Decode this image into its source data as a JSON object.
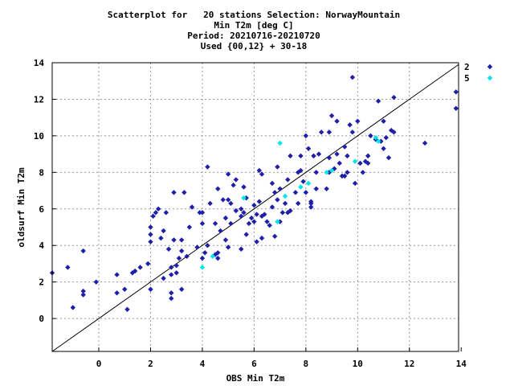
{
  "chart_data": {
    "type": "scatter",
    "title_lines": [
      "Scatterplot for   20 stations Selection: NorwayMountain",
      "Min T2m [deg C]",
      "Period: 20210716-20210720",
      "Used {00,12} + 30-18"
    ],
    "xlabel": "OBS Min T2m",
    "ylabel": "oldsurf Min T2m",
    "xlim": [
      -1.8,
      13.9
    ],
    "ylim": [
      -1.8,
      14
    ],
    "xticks": [
      0,
      2,
      4,
      6,
      8,
      10,
      12,
      14
    ],
    "yticks": [
      0,
      2,
      4,
      6,
      8,
      10,
      12,
      14
    ],
    "grid": true,
    "diagonal": true,
    "legend_position": "right",
    "series": [
      {
        "name": "2",
        "color": "#1f1fa8",
        "marker": "diamond",
        "points": [
          [
            -1.8,
            2.5
          ],
          [
            -1.2,
            2.8
          ],
          [
            -1.0,
            0.6
          ],
          [
            -0.6,
            3.7
          ],
          [
            -0.6,
            1.5
          ],
          [
            -0.6,
            1.3
          ],
          [
            -0.1,
            2.0
          ],
          [
            0.7,
            2.4
          ],
          [
            0.7,
            1.4
          ],
          [
            1.0,
            1.6
          ],
          [
            1.1,
            0.5
          ],
          [
            1.3,
            2.5
          ],
          [
            1.4,
            2.6
          ],
          [
            1.6,
            2.8
          ],
          [
            1.9,
            3.0
          ],
          [
            2.0,
            1.6
          ],
          [
            2.0,
            4.2
          ],
          [
            2.0,
            4.6
          ],
          [
            2.0,
            5.0
          ],
          [
            2.1,
            5.6
          ],
          [
            2.2,
            5.8
          ],
          [
            2.3,
            6.0
          ],
          [
            2.4,
            4.4
          ],
          [
            2.5,
            2.2
          ],
          [
            2.5,
            4.8
          ],
          [
            2.6,
            5.8
          ],
          [
            2.7,
            3.8
          ],
          [
            2.8,
            2.4
          ],
          [
            2.8,
            2.8
          ],
          [
            2.8,
            1.1
          ],
          [
            2.8,
            1.4
          ],
          [
            2.9,
            4.3
          ],
          [
            2.9,
            6.9
          ],
          [
            3.0,
            2.9
          ],
          [
            3.0,
            2.5
          ],
          [
            3.1,
            3.3
          ],
          [
            3.2,
            3.7
          ],
          [
            3.2,
            4.3
          ],
          [
            3.2,
            1.6
          ],
          [
            3.3,
            6.9
          ],
          [
            3.4,
            3.4
          ],
          [
            3.5,
            5.0
          ],
          [
            3.6,
            6.1
          ],
          [
            3.8,
            3.9
          ],
          [
            3.9,
            5.8
          ],
          [
            4.0,
            5.2
          ],
          [
            4.0,
            3.3
          ],
          [
            4.0,
            5.8
          ],
          [
            4.1,
            3.6
          ],
          [
            4.2,
            4.0
          ],
          [
            4.2,
            8.3
          ],
          [
            4.3,
            6.3
          ],
          [
            4.5,
            3.5
          ],
          [
            4.5,
            5.2
          ],
          [
            4.6,
            3.6
          ],
          [
            4.6,
            7.1
          ],
          [
            4.6,
            3.3
          ],
          [
            4.7,
            4.8
          ],
          [
            4.8,
            6.5
          ],
          [
            4.9,
            4.3
          ],
          [
            4.9,
            5.5
          ],
          [
            5.0,
            6.5
          ],
          [
            5.0,
            7.9
          ],
          [
            5.0,
            3.9
          ],
          [
            5.1,
            5.2
          ],
          [
            5.1,
            6.3
          ],
          [
            5.2,
            7.3
          ],
          [
            5.3,
            7.6
          ],
          [
            5.3,
            5.9
          ],
          [
            5.5,
            5.6
          ],
          [
            5.5,
            3.8
          ],
          [
            5.5,
            6.0
          ],
          [
            5.6,
            7.2
          ],
          [
            5.6,
            5.8
          ],
          [
            5.7,
            6.6
          ],
          [
            5.7,
            4.6
          ],
          [
            5.8,
            5.2
          ],
          [
            5.9,
            5.5
          ],
          [
            6.0,
            5.3
          ],
          [
            6.0,
            6.2
          ],
          [
            6.1,
            4.2
          ],
          [
            6.1,
            5.7
          ],
          [
            6.2,
            6.4
          ],
          [
            6.2,
            8.1
          ],
          [
            6.3,
            5.6
          ],
          [
            6.3,
            4.4
          ],
          [
            6.3,
            7.9
          ],
          [
            6.4,
            5.7
          ],
          [
            6.5,
            5.3
          ],
          [
            6.6,
            5.1
          ],
          [
            6.7,
            7.4
          ],
          [
            6.7,
            6.1
          ],
          [
            6.8,
            6.9
          ],
          [
            6.8,
            4.5
          ],
          [
            6.9,
            8.3
          ],
          [
            6.9,
            6.5
          ],
          [
            7.0,
            7.1
          ],
          [
            7.0,
            5.3
          ],
          [
            7.1,
            5.8
          ],
          [
            7.2,
            6.3
          ],
          [
            7.3,
            7.6
          ],
          [
            7.3,
            5.8
          ],
          [
            7.4,
            8.9
          ],
          [
            7.4,
            5.9
          ],
          [
            7.6,
            6.9
          ],
          [
            7.7,
            8.0
          ],
          [
            7.7,
            6.3
          ],
          [
            7.8,
            8.1
          ],
          [
            7.8,
            8.9
          ],
          [
            7.9,
            7.5
          ],
          [
            8.0,
            10.0
          ],
          [
            8.0,
            6.9
          ],
          [
            8.1,
            9.3
          ],
          [
            8.2,
            6.4
          ],
          [
            8.2,
            6.1
          ],
          [
            8.2,
            6.3
          ],
          [
            8.3,
            8.9
          ],
          [
            8.4,
            8.0
          ],
          [
            8.4,
            7.1
          ],
          [
            8.5,
            9.0
          ],
          [
            8.6,
            10.2
          ],
          [
            8.8,
            7.1
          ],
          [
            8.9,
            10.2
          ],
          [
            8.9,
            8.8
          ],
          [
            8.9,
            8.0
          ],
          [
            9.0,
            11.1
          ],
          [
            9.1,
            8.2
          ],
          [
            9.2,
            10.8
          ],
          [
            9.2,
            9.0
          ],
          [
            9.3,
            8.5
          ],
          [
            9.4,
            7.8
          ],
          [
            9.5,
            7.8
          ],
          [
            9.5,
            9.4
          ],
          [
            9.6,
            8.0
          ],
          [
            9.6,
            8.9
          ],
          [
            9.7,
            10.6
          ],
          [
            9.8,
            10.2
          ],
          [
            9.8,
            13.2
          ],
          [
            9.9,
            7.4
          ],
          [
            10.0,
            10.8
          ],
          [
            10.1,
            8.5
          ],
          [
            10.2,
            8.0
          ],
          [
            10.3,
            8.6
          ],
          [
            10.4,
            8.5
          ],
          [
            10.4,
            8.9
          ],
          [
            10.5,
            10.0
          ],
          [
            10.7,
            9.8
          ],
          [
            10.8,
            11.9
          ],
          [
            10.9,
            9.7
          ],
          [
            11.0,
            10.8
          ],
          [
            11.0,
            9.3
          ],
          [
            11.1,
            9.9
          ],
          [
            11.2,
            8.8
          ],
          [
            11.3,
            10.3
          ],
          [
            11.4,
            10.2
          ],
          [
            11.4,
            12.1
          ],
          [
            12.6,
            9.6
          ],
          [
            13.8,
            12.4
          ],
          [
            13.8,
            11.5
          ]
        ]
      },
      {
        "name": "5",
        "color": "#00e5e5",
        "marker": "diamond",
        "points": [
          [
            4.0,
            2.8
          ],
          [
            4.4,
            3.4
          ],
          [
            5.6,
            6.6
          ],
          [
            6.9,
            5.3
          ],
          [
            7.0,
            9.6
          ],
          [
            7.2,
            6.7
          ],
          [
            7.8,
            7.2
          ],
          [
            8.1,
            7.4
          ],
          [
            8.8,
            8.0
          ],
          [
            9.0,
            8.1
          ],
          [
            9.9,
            8.6
          ],
          [
            10.8,
            9.7
          ],
          [
            10.7,
            9.9
          ]
        ]
      }
    ]
  }
}
